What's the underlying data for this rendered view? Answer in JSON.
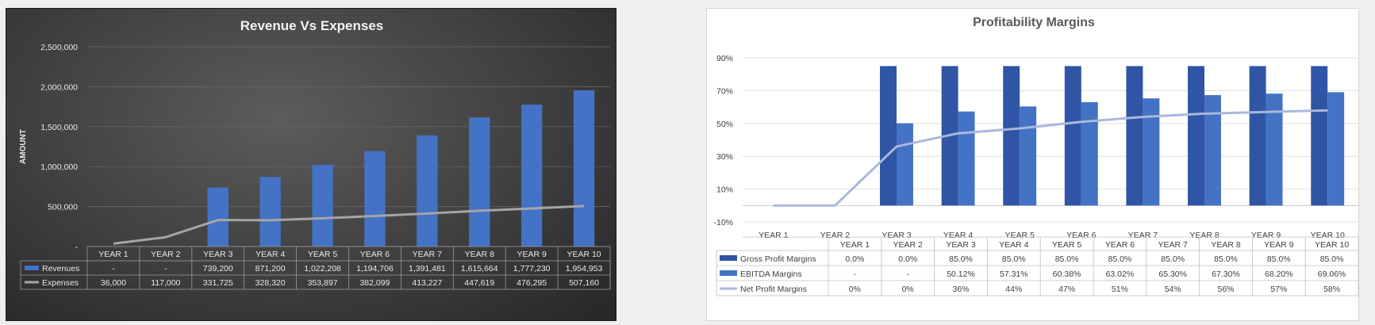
{
  "chart_data": [
    {
      "type": "bar",
      "title": "Revenue Vs Expenses",
      "xlabel": "",
      "ylabel": "AMOUNT",
      "categories": [
        "YEAR 1",
        "YEAR 2",
        "YEAR 3",
        "YEAR 4",
        "YEAR 5",
        "YEAR 6",
        "YEAR 7",
        "YEAR 8",
        "YEAR 9",
        "YEAR 10"
      ],
      "ylim": [
        0,
        2500000
      ],
      "yticks": [
        0,
        500000,
        1000000,
        1500000,
        2000000,
        2500000
      ],
      "ytick_labels": [
        "-",
        "500,000",
        "1,000,000",
        "1,500,000",
        "2,000,000",
        "2,500,000"
      ],
      "grid": true,
      "legend": "data-table",
      "series": [
        {
          "name": "Revenues",
          "type": "bar",
          "color": "#4472c4",
          "values": [
            0,
            0,
            739200,
            871200,
            1022208,
            1194706,
            1391481,
            1615664,
            1777230,
            1954953
          ],
          "labels": [
            "-",
            "-",
            "739,200",
            "871,200",
            "1,022,208",
            "1,194,706",
            "1,391,481",
            "1,615,664",
            "1,777,230",
            "1,954,953"
          ]
        },
        {
          "name": "Expenses",
          "type": "line",
          "color": "#a5a5a5",
          "values": [
            36000,
            117000,
            331725,
            328320,
            353897,
            382099,
            413227,
            447619,
            476295,
            507160
          ],
          "labels": [
            "36,000",
            "117,000",
            "331,725",
            "328,320",
            "353,897",
            "382,099",
            "413,227",
            "447,619",
            "476,295",
            "507,160"
          ]
        }
      ]
    },
    {
      "type": "bar",
      "title": "Profitability Margins",
      "xlabel": "",
      "ylabel": "",
      "categories": [
        "YEAR 1",
        "YEAR 2",
        "YEAR 3",
        "YEAR 4",
        "YEAR 5",
        "YEAR 6",
        "YEAR 7",
        "YEAR 8",
        "YEAR 9",
        "YEAR 10"
      ],
      "ylim": [
        -10,
        90
      ],
      "yticks": [
        -10,
        10,
        30,
        50,
        70,
        90
      ],
      "ytick_labels": [
        "-10%",
        "10%",
        "30%",
        "50%",
        "70%",
        "90%"
      ],
      "grid": true,
      "legend": "data-table",
      "series": [
        {
          "name": "Gross Profit Margins",
          "type": "bar",
          "color": "#2f55a4",
          "values": [
            0,
            0,
            85,
            85,
            85,
            85,
            85,
            85,
            85,
            85
          ],
          "labels": [
            "0.0%",
            "0.0%",
            "85.0%",
            "85.0%",
            "85.0%",
            "85.0%",
            "85.0%",
            "85.0%",
            "85.0%",
            "85.0%"
          ]
        },
        {
          "name": "EBITDA Margins",
          "type": "bar",
          "color": "#4472c4",
          "values": [
            0,
            0,
            50.12,
            57.31,
            60.38,
            63.02,
            65.3,
            67.3,
            68.2,
            69.06
          ],
          "labels": [
            "-",
            "-",
            "50.12%",
            "57.31%",
            "60.38%",
            "63.02%",
            "65.30%",
            "67.30%",
            "68.20%",
            "69.06%"
          ]
        },
        {
          "name": "Net Profit Margins",
          "type": "line",
          "color": "#a9b8dc",
          "values": [
            0,
            0,
            36,
            44,
            47,
            51,
            54,
            56,
            57,
            58
          ],
          "labels": [
            "0%",
            "0%",
            "36%",
            "44%",
            "47%",
            "51%",
            "54%",
            "56%",
            "57%",
            "58%"
          ]
        }
      ]
    }
  ]
}
